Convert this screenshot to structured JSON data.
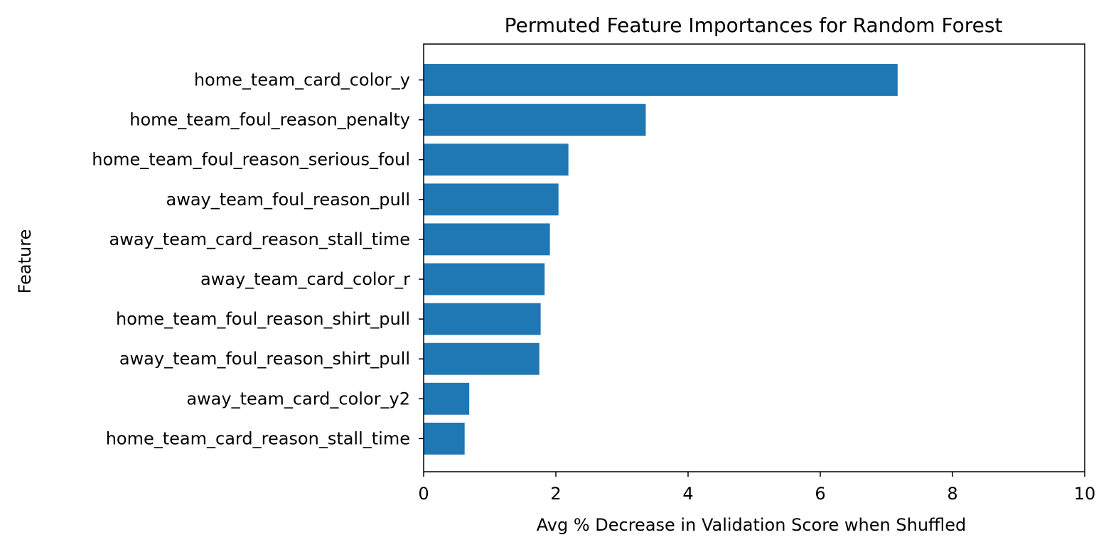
{
  "chart_data": {
    "type": "bar",
    "orientation": "horizontal",
    "title": "Permuted Feature Importances for Random Forest",
    "xlabel": "Avg % Decrease in Validation Score when Shuffled",
    "ylabel": "Feature",
    "categories": [
      "home_team_card_color_y",
      "home_team_foul_reason_penalty",
      "home_team_foul_reason_serious_foul",
      "away_team_foul_reason_pull",
      "away_team_card_reason_stall_time",
      "away_team_card_color_r",
      "home_team_foul_reason_shirt_pull",
      "away_team_foul_reason_shirt_pull",
      "away_team_card_color_y2",
      "home_team_card_reason_stall_time"
    ],
    "values": [
      7.17,
      3.36,
      2.19,
      2.04,
      1.91,
      1.83,
      1.77,
      1.75,
      0.69,
      0.62
    ],
    "xlim": [
      0,
      10
    ],
    "xticks": [
      0,
      2,
      4,
      6,
      8,
      10
    ],
    "grid": false,
    "legend": false,
    "bar_color": "#1f77b4"
  }
}
